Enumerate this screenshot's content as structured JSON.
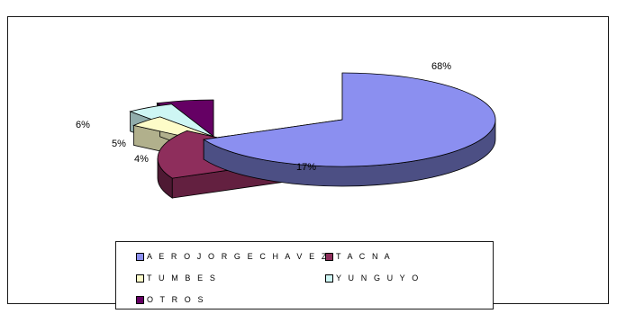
{
  "chart_data": {
    "type": "pie",
    "style": "3d-exploded",
    "title": "",
    "slices": [
      {
        "label": "AERO JORGE CHAVEZ",
        "value": 68,
        "display": "68%",
        "color": "#8b8ff0"
      },
      {
        "label": "TACNA",
        "value": 17,
        "display": "17%",
        "color": "#8e2e5c"
      },
      {
        "label": "TUMBES",
        "value": 4,
        "display": "4%",
        "color": "#fdfcc8"
      },
      {
        "label": "YUNGUYO",
        "value": 5,
        "display": "5%",
        "color": "#cef6f4"
      },
      {
        "label": "OTROS",
        "value": 6,
        "display": "6%",
        "color": "#650064"
      }
    ],
    "legend": {
      "placement": "bottom",
      "items": [
        "A E R O  J O R G E  C H A V E Z",
        "T A C N A",
        "T U M B E S",
        "Y U N G U Y O",
        "O T R O S"
      ]
    }
  }
}
